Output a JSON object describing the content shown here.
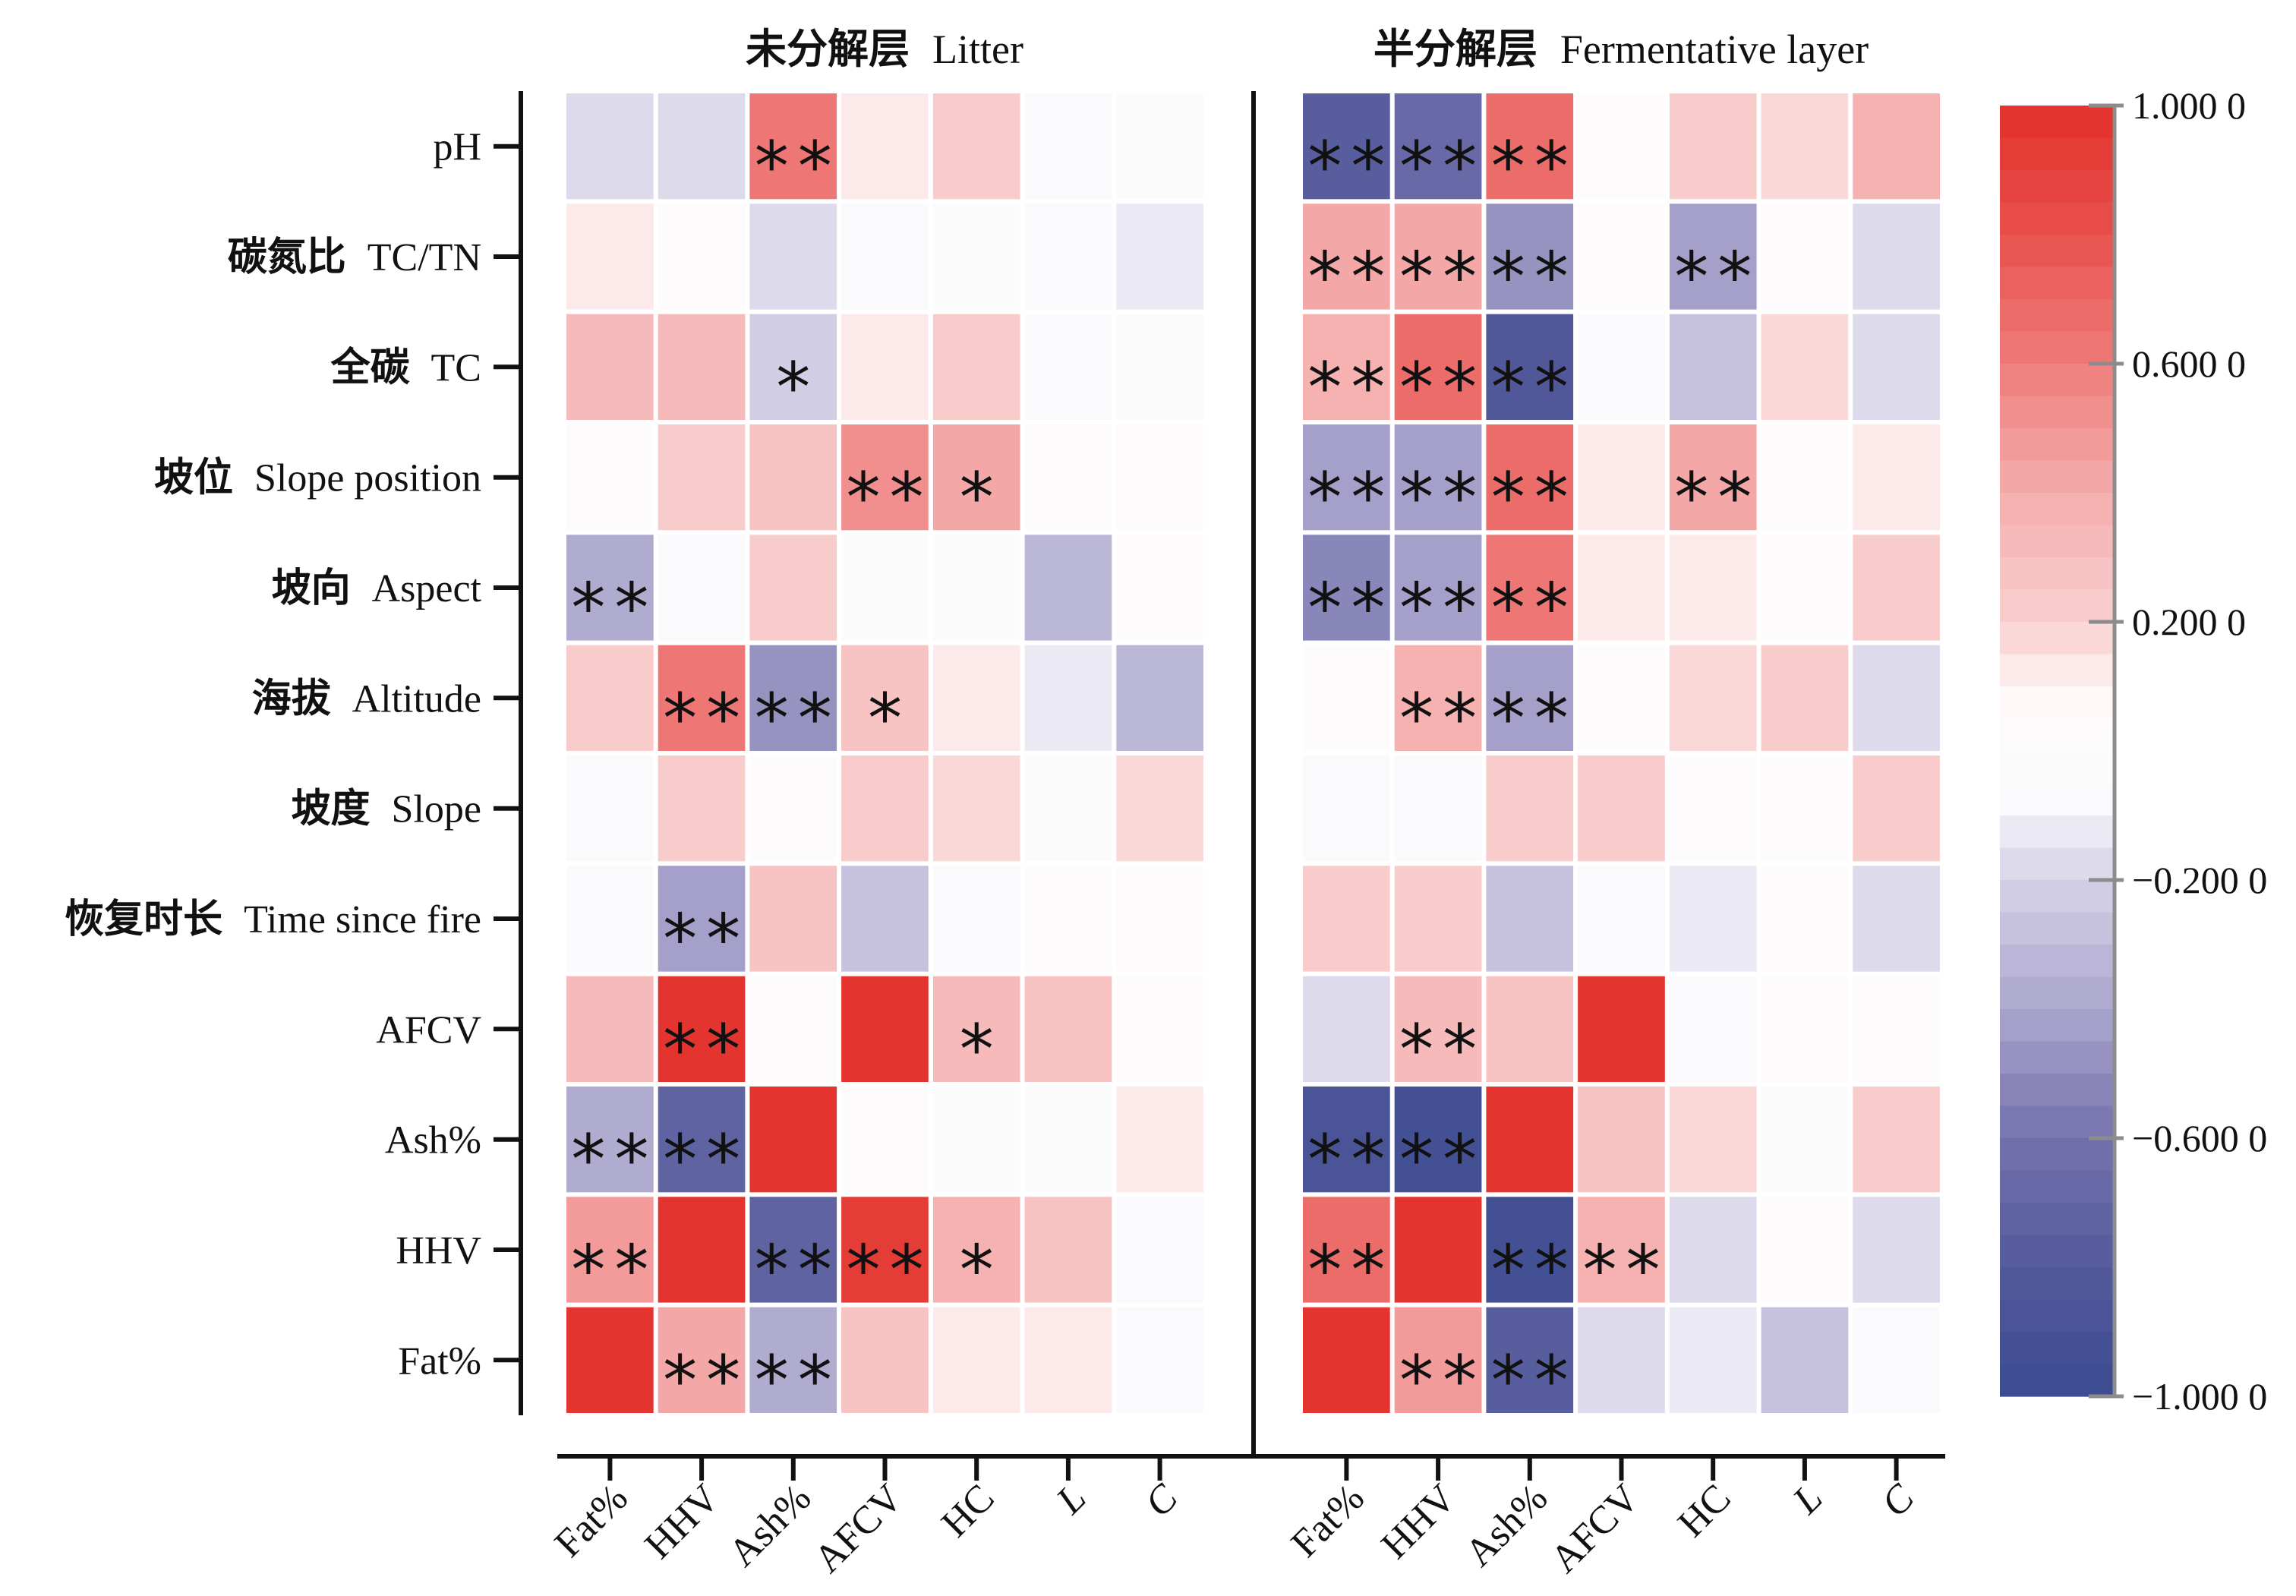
{
  "chart_data": {
    "type": "heatmap",
    "rows": [
      {
        "cn": "",
        "en": "pH"
      },
      {
        "cn": "碳氮比",
        "en": "TC/TN"
      },
      {
        "cn": "全碳",
        "en": "TC"
      },
      {
        "cn": "坡位",
        "en": "Slope position"
      },
      {
        "cn": "坡向",
        "en": "Aspect"
      },
      {
        "cn": "海拔",
        "en": "Altitude"
      },
      {
        "cn": "坡度",
        "en": "Slope"
      },
      {
        "cn": "恢复时长",
        "en": "Time since fire"
      },
      {
        "cn": "",
        "en": "AFCV"
      },
      {
        "cn": "",
        "en": "Ash%"
      },
      {
        "cn": "",
        "en": "HHV"
      },
      {
        "cn": "",
        "en": "Fat%"
      }
    ],
    "columns": [
      {
        "label": "Fat%"
      },
      {
        "label": "HHV"
      },
      {
        "label": "Ash%"
      },
      {
        "label": "AFCV"
      },
      {
        "label": "HC"
      },
      {
        "label": "L",
        "italic": true
      },
      {
        "label": "C",
        "italic": true
      }
    ],
    "panels": [
      {
        "title_cn": "未分解层",
        "title_en": "Litter",
        "values": [
          [
            -0.2,
            -0.18,
            0.62,
            0.12,
            0.22,
            -0.1,
            -0.02
          ],
          [
            0.1,
            0.0,
            -0.2,
            -0.1,
            -0.02,
            -0.1,
            -0.15
          ],
          [
            0.3,
            0.3,
            -0.25,
            0.13,
            0.22,
            -0.1,
            -0.02
          ],
          [
            0.02,
            0.2,
            0.28,
            0.5,
            0.43,
            0.02,
            0.02
          ],
          [
            -0.4,
            -0.1,
            0.22,
            -0.02,
            -0.02,
            -0.33,
            0.0
          ],
          [
            0.22,
            0.6,
            -0.5,
            0.25,
            0.14,
            -0.12,
            -0.35
          ],
          [
            -0.1,
            0.2,
            0.02,
            0.22,
            0.15,
            -0.02,
            0.18
          ],
          [
            -0.1,
            -0.42,
            0.28,
            -0.27,
            -0.1,
            0.0,
            0.02
          ],
          [
            0.3,
            0.95,
            0.02,
            1.0,
            0.33,
            0.25,
            0.0
          ],
          [
            -0.4,
            -0.75,
            1.0,
            0.0,
            -0.02,
            -0.02,
            0.12
          ],
          [
            0.45,
            1.0,
            -0.72,
            0.9,
            0.35,
            0.25,
            -0.1
          ],
          [
            1.0,
            0.43,
            -0.37,
            0.28,
            0.1,
            0.12,
            -0.1
          ]
        ],
        "significance": [
          [
            "",
            "",
            "**",
            "",
            "",
            "",
            ""
          ],
          [
            "",
            "",
            "",
            "",
            "",
            "",
            ""
          ],
          [
            "",
            "",
            "*",
            "",
            "",
            "",
            ""
          ],
          [
            "",
            "",
            "",
            "**",
            "*",
            "",
            ""
          ],
          [
            "**",
            "",
            "",
            "",
            "",
            "",
            ""
          ],
          [
            "",
            "**",
            "**",
            "*",
            "",
            "",
            ""
          ],
          [
            "",
            "",
            "",
            "",
            "",
            "",
            ""
          ],
          [
            "",
            "**",
            "",
            "",
            "",
            "",
            ""
          ],
          [
            "",
            "**",
            "",
            "",
            "*",
            "",
            ""
          ],
          [
            "**",
            "**",
            "",
            "",
            "",
            "",
            ""
          ],
          [
            "**",
            "",
            "**",
            "**",
            "*",
            "",
            ""
          ],
          [
            "",
            "**",
            "**",
            "",
            "",
            "",
            ""
          ]
        ]
      },
      {
        "title_cn": "半分解层",
        "title_en": "Fermentative layer",
        "values": [
          [
            -0.78,
            -0.66,
            0.68,
            0.0,
            0.22,
            0.15,
            0.36
          ],
          [
            0.42,
            0.42,
            -0.47,
            0.0,
            -0.43,
            0.0,
            -0.2
          ],
          [
            0.37,
            0.65,
            -0.85,
            -0.1,
            -0.28,
            0.15,
            -0.2
          ],
          [
            -0.45,
            -0.42,
            0.65,
            0.12,
            0.43,
            0.02,
            0.1
          ],
          [
            -0.55,
            -0.45,
            0.62,
            0.13,
            0.13,
            0.02,
            0.22
          ],
          [
            0.0,
            0.36,
            -0.42,
            0.02,
            0.15,
            0.22,
            -0.2
          ],
          [
            -0.1,
            -0.1,
            0.2,
            0.22,
            0.02,
            0.02,
            0.22
          ],
          [
            0.22,
            0.2,
            -0.28,
            -0.1,
            -0.12,
            0.0,
            -0.2
          ],
          [
            -0.18,
            0.32,
            0.28,
            1.0,
            -0.1,
            0.02,
            0.02
          ],
          [
            -0.88,
            -0.95,
            1.0,
            0.28,
            0.15,
            -0.02,
            0.2
          ],
          [
            0.68,
            1.0,
            -0.95,
            0.36,
            -0.2,
            0.0,
            -0.2
          ],
          [
            1.0,
            0.46,
            -0.8,
            -0.18,
            -0.12,
            -0.28,
            -0.1
          ]
        ],
        "significance": [
          [
            "**",
            "**",
            "**",
            "",
            "",
            "",
            ""
          ],
          [
            "**",
            "**",
            "**",
            "",
            "**",
            "",
            ""
          ],
          [
            "**",
            "**",
            "**",
            "",
            "",
            "",
            ""
          ],
          [
            "**",
            "**",
            "**",
            "",
            "**",
            "",
            ""
          ],
          [
            "**",
            "**",
            "**",
            "",
            "",
            "",
            ""
          ],
          [
            "",
            "**",
            "**",
            "",
            "",
            "",
            ""
          ],
          [
            "",
            "",
            "",
            "",
            "",
            "",
            ""
          ],
          [
            "",
            "",
            "",
            "",
            "",
            "",
            ""
          ],
          [
            "",
            "**",
            "",
            "",
            "",
            "",
            ""
          ],
          [
            "**",
            "**",
            "",
            "",
            "",
            "",
            ""
          ],
          [
            "**",
            "",
            "**",
            "**",
            "",
            "",
            ""
          ],
          [
            "",
            "**",
            "**",
            "",
            "",
            "",
            ""
          ]
        ]
      }
    ],
    "colorbar": {
      "range": [
        -1,
        1
      ],
      "levels": 40,
      "ticks": [
        1,
        0.6,
        0.2,
        -0.2,
        -0.6,
        -1
      ],
      "tick_labels": [
        "1.000 0",
        "0.600 0",
        "0.200 0",
        "−0.200 0",
        "−0.600 0",
        "−1.000 0"
      ],
      "colormap": [
        {
          "value": -1.0,
          "color": "#3b4a8f"
        },
        {
          "value": -0.8,
          "color": "#545a9c"
        },
        {
          "value": -0.6,
          "color": "#7572ad"
        },
        {
          "value": -0.4,
          "color": "#aba6cd"
        },
        {
          "value": -0.2,
          "color": "#d6d2e7"
        },
        {
          "value": -0.07,
          "color": "#fbfbfd"
        },
        {
          "value": 0.07,
          "color": "#fffbfb"
        },
        {
          "value": 0.2,
          "color": "#f9d0d0"
        },
        {
          "value": 0.4,
          "color": "#f5adad"
        },
        {
          "value": 0.6,
          "color": "#ef7d7b"
        },
        {
          "value": 0.8,
          "color": "#e8504c"
        },
        {
          "value": 1.0,
          "color": "#e2302b"
        }
      ]
    }
  }
}
